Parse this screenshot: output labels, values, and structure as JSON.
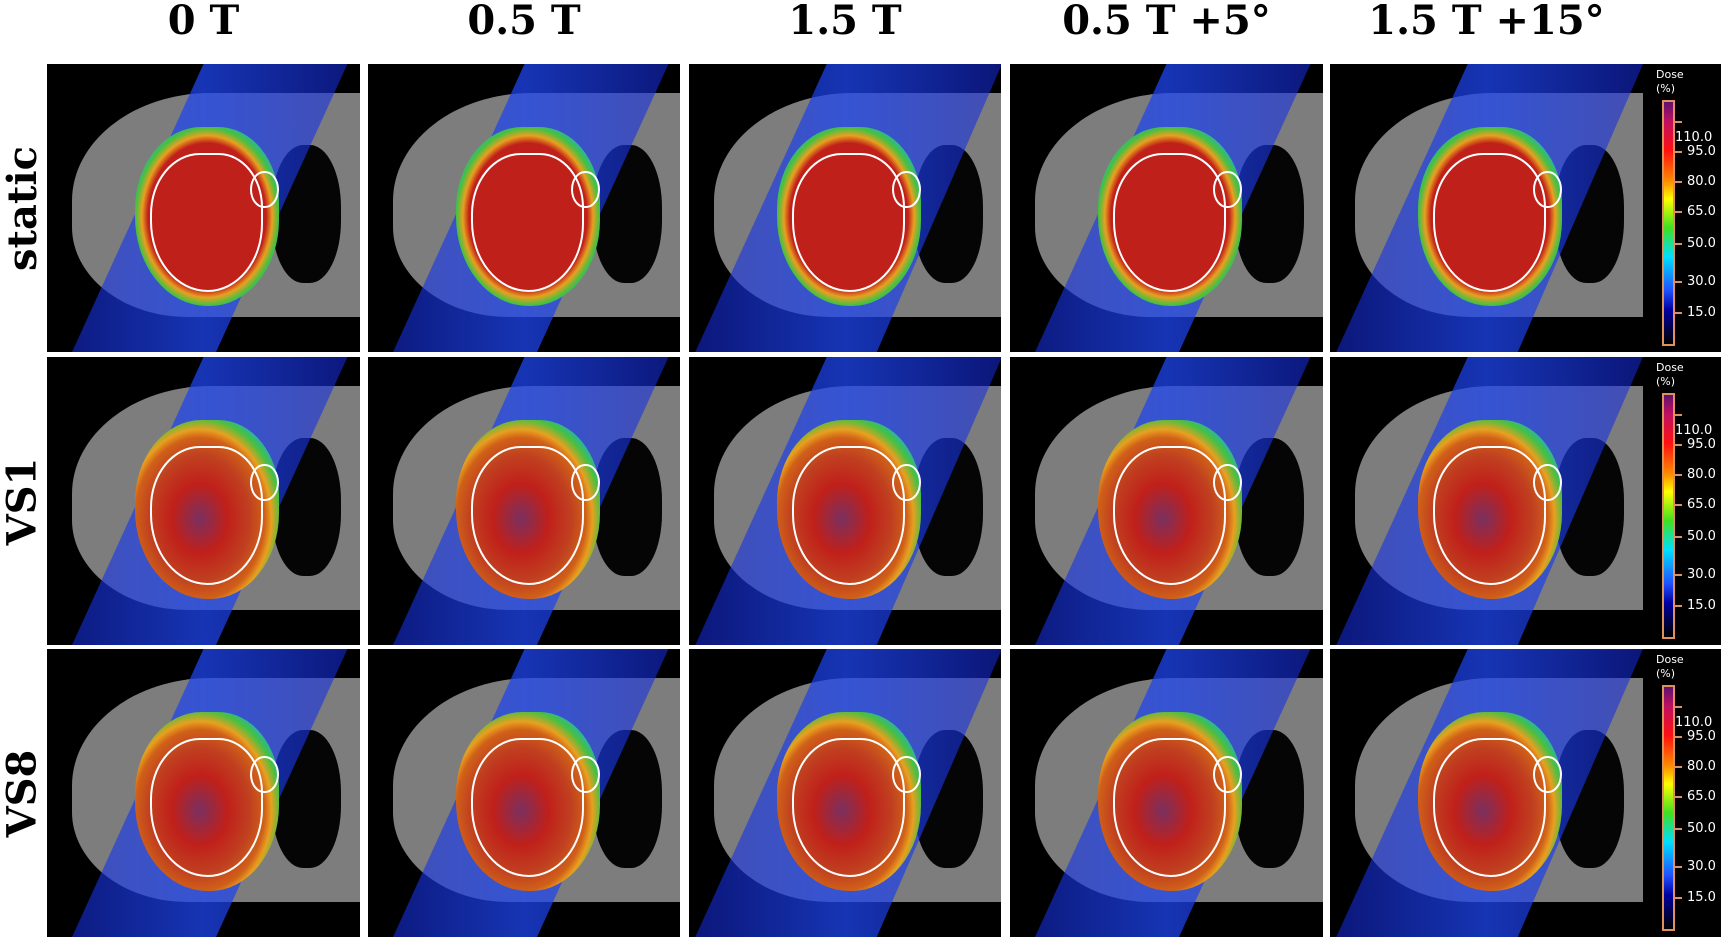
{
  "columns": [
    "0 T",
    "0.5 T",
    "1.5 T",
    "0.5 T +5°",
    "1.5 T +15°"
  ],
  "rows": [
    "static",
    "VS1",
    "VS8"
  ],
  "colorbar": {
    "title_line1": "Dose",
    "title_line2": "(%)",
    "ticks": [
      "110.0",
      "95.0",
      "80.0",
      "65.0",
      "50.0",
      "30.0",
      "15.0"
    ],
    "colormap": [
      "#601070",
      "#ff1010",
      "#ff9000",
      "#ffff00",
      "#40e020",
      "#00e0ff",
      "#2050ff",
      "#000000"
    ]
  }
}
